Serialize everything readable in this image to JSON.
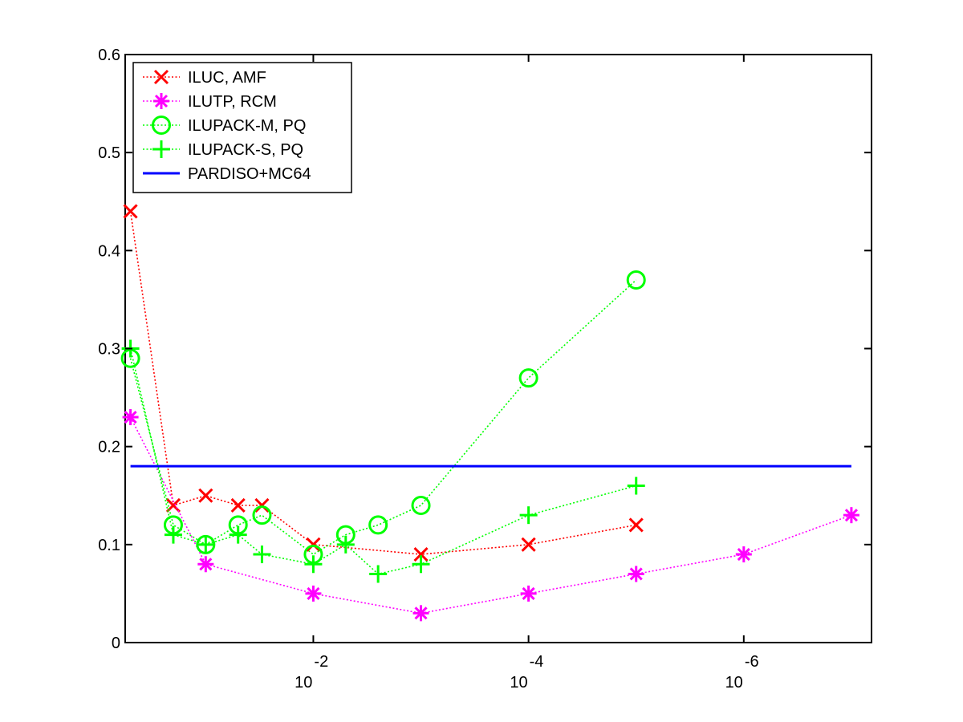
{
  "chart_data": {
    "type": "line",
    "title": "",
    "xlabel": "",
    "ylabel": "",
    "xscale": "log-reversed",
    "xlim": [
      0.56,
      6.5e-08
    ],
    "ylim": [
      0,
      0.6
    ],
    "yticks": [
      "0",
      "0.1",
      "0.2",
      "0.3",
      "0.4",
      "0.5",
      "0.6"
    ],
    "xticks": [
      {
        "x": 0.01,
        "base": "10",
        "exp": "-2"
      },
      {
        "x": 0.0001,
        "base": "10",
        "exp": "-4"
      },
      {
        "x": 1e-06,
        "base": "10",
        "exp": "-6"
      }
    ],
    "grid": false,
    "legend_position": "top-left",
    "series": [
      {
        "name": "ILUC, AMF",
        "color": "#ff0000",
        "marker": "x",
        "line": "dotted",
        "points": [
          [
            0.5,
            0.44
          ],
          [
            0.2,
            0.14
          ],
          [
            0.1,
            0.15
          ],
          [
            0.05,
            0.14
          ],
          [
            0.03,
            0.14
          ],
          [
            0.01,
            0.1
          ],
          [
            0.001,
            0.09
          ],
          [
            0.0001,
            0.1
          ],
          [
            1e-05,
            0.12
          ]
        ]
      },
      {
        "name": "ILUTP, RCM",
        "color": "#ff00ff",
        "marker": "asterisk",
        "line": "dotted",
        "points": [
          [
            0.5,
            0.23
          ],
          [
            0.1,
            0.08
          ],
          [
            0.01,
            0.05
          ],
          [
            0.001,
            0.03
          ],
          [
            0.0001,
            0.05
          ],
          [
            1e-05,
            0.07
          ],
          [
            1e-06,
            0.09
          ],
          [
            1e-07,
            0.13
          ]
        ]
      },
      {
        "name": "ILUPACK-M, PQ",
        "color": "#00ff00",
        "marker": "circle",
        "line": "dotted",
        "points": [
          [
            0.5,
            0.29
          ],
          [
            0.2,
            0.12
          ],
          [
            0.1,
            0.1
          ],
          [
            0.05,
            0.12
          ],
          [
            0.03,
            0.13
          ],
          [
            0.01,
            0.09
          ],
          [
            0.005,
            0.11
          ],
          [
            0.0025,
            0.12
          ],
          [
            0.001,
            0.14
          ],
          [
            0.0001,
            0.27
          ],
          [
            1e-05,
            0.37
          ]
        ]
      },
      {
        "name": "ILUPACK-S, PQ",
        "color": "#00ff00",
        "marker": "plus",
        "line": "dotted",
        "points": [
          [
            0.5,
            0.3
          ],
          [
            0.2,
            0.11
          ],
          [
            0.1,
            0.1
          ],
          [
            0.05,
            0.11
          ],
          [
            0.03,
            0.09
          ],
          [
            0.01,
            0.08
          ],
          [
            0.005,
            0.1
          ],
          [
            0.0025,
            0.07
          ],
          [
            0.001,
            0.08
          ],
          [
            0.0001,
            0.13
          ],
          [
            1e-05,
            0.16
          ]
        ]
      },
      {
        "name": "PARDISO+MC64",
        "color": "#0000ff",
        "marker": "none",
        "line": "solid",
        "points": [
          [
            0.5,
            0.18
          ],
          [
            1e-07,
            0.18
          ]
        ]
      }
    ]
  }
}
